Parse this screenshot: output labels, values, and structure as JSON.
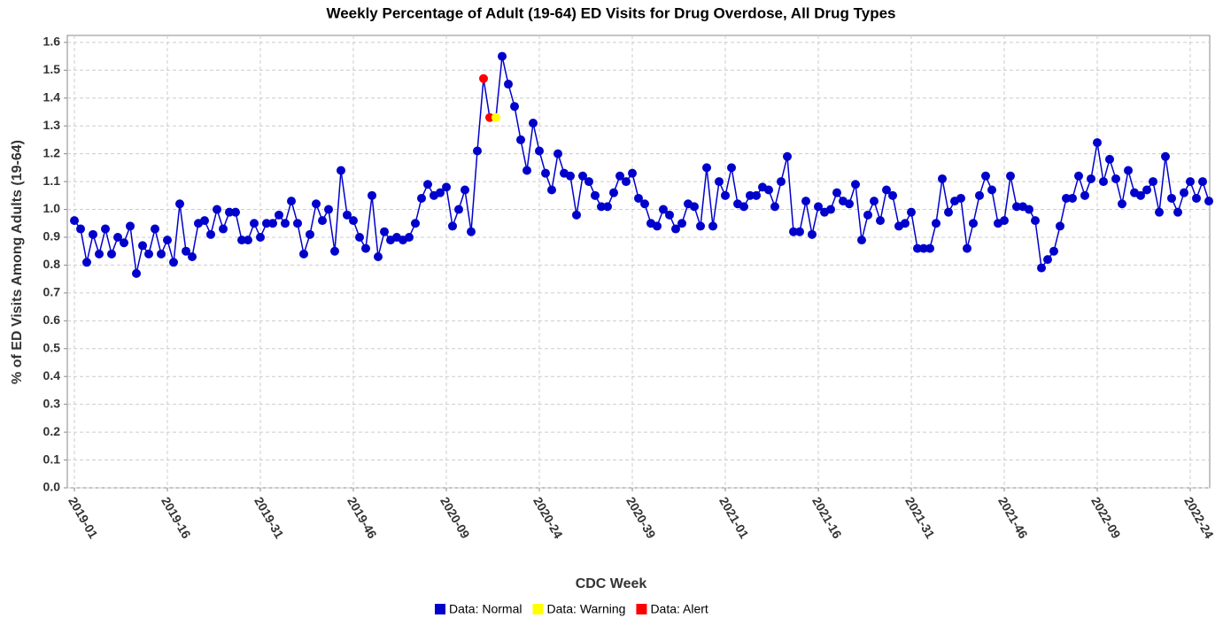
{
  "chart_data": {
    "type": "line",
    "title": "Weekly Percentage of Adult (19-64) ED Visits for Drug Overdose, All Drug Types",
    "x_label": "CDC Week",
    "y_label": "% of ED Visits Among Adults (19-64)",
    "categories": [
      "2019-01",
      null,
      null,
      null,
      null,
      null,
      null,
      null,
      null,
      null,
      null,
      null,
      null,
      null,
      null,
      "2019-16",
      null,
      null,
      null,
      null,
      null,
      null,
      null,
      null,
      null,
      null,
      null,
      null,
      null,
      null,
      "2019-31",
      null,
      null,
      null,
      null,
      null,
      null,
      null,
      null,
      null,
      null,
      null,
      null,
      null,
      null,
      "2019-46",
      null,
      null,
      null,
      null,
      null,
      null,
      null,
      null,
      null,
      null,
      null,
      null,
      null,
      null,
      "2020-09",
      null,
      null,
      null,
      null,
      null,
      null,
      null,
      null,
      null,
      null,
      null,
      null,
      null,
      null,
      "2020-24",
      null,
      null,
      null,
      null,
      null,
      null,
      null,
      null,
      null,
      null,
      null,
      null,
      null,
      null,
      "2020-39",
      null,
      null,
      null,
      null,
      null,
      null,
      null,
      null,
      null,
      null,
      null,
      null,
      null,
      null,
      "2021-01",
      null,
      null,
      null,
      null,
      null,
      null,
      null,
      null,
      null,
      null,
      null,
      null,
      null,
      null,
      "2021-16",
      null,
      null,
      null,
      null,
      null,
      null,
      null,
      null,
      null,
      null,
      null,
      null,
      null,
      null,
      "2021-31",
      null,
      null,
      null,
      null,
      null,
      null,
      null,
      null,
      null,
      null,
      null,
      null,
      null,
      null,
      "2021-46",
      null,
      null,
      null,
      null,
      null,
      null,
      null,
      null,
      null,
      null,
      null,
      null,
      null,
      null,
      "2022-09",
      null,
      null,
      null,
      null,
      null,
      null,
      null,
      null,
      null,
      null,
      null,
      null,
      null,
      null,
      "2022-24",
      null,
      null,
      null
    ],
    "series": [
      {
        "name": "Data: Normal",
        "color": "#0000cc",
        "values": [
          0.96,
          0.93,
          0.81,
          0.91,
          0.84,
          0.93,
          0.84,
          0.9,
          0.88,
          0.94,
          0.77,
          0.87,
          0.84,
          0.93,
          0.84,
          0.89,
          0.81,
          1.02,
          0.85,
          0.83,
          0.95,
          0.96,
          0.91,
          1.0,
          0.93,
          0.99,
          0.99,
          0.89,
          0.89,
          0.95,
          0.9,
          0.95,
          0.95,
          0.98,
          0.95,
          1.03,
          0.95,
          0.84,
          0.91,
          1.02,
          0.96,
          1.0,
          0.85,
          1.14,
          0.98,
          0.96,
          0.9,
          0.86,
          1.05,
          0.83,
          0.92,
          0.89,
          0.9,
          0.89,
          0.9,
          0.95,
          1.04,
          1.09,
          1.05,
          1.06,
          1.08,
          0.94,
          1.0,
          1.07,
          0.92,
          1.21,
          null,
          null,
          null,
          1.55,
          1.45,
          1.37,
          1.25,
          1.14,
          1.31,
          1.21,
          1.13,
          1.07,
          1.2,
          1.13,
          1.12,
          0.98,
          1.12,
          1.1,
          1.05,
          1.01,
          1.01,
          1.06,
          1.12,
          1.1,
          1.13,
          1.04,
          1.02,
          0.95,
          0.94,
          1.0,
          0.98,
          0.93,
          0.95,
          1.02,
          1.01,
          0.94,
          1.15,
          0.94,
          1.1,
          1.05,
          1.15,
          1.02,
          1.01,
          1.05,
          1.05,
          1.08,
          1.07,
          1.01,
          1.1,
          1.19,
          0.92,
          0.92,
          1.03,
          0.91,
          1.01,
          0.99,
          1.0,
          1.06,
          1.03,
          1.02,
          1.09,
          0.89,
          0.98,
          1.03,
          0.96,
          1.07,
          1.05,
          0.94,
          0.95,
          0.99,
          0.86,
          0.86,
          0.86,
          0.95,
          1.11,
          0.99,
          1.03,
          1.04,
          0.86,
          0.95,
          1.05,
          1.12,
          1.07,
          0.95,
          0.96,
          1.12,
          1.01,
          1.01,
          1.0,
          0.96,
          0.79,
          0.82,
          0.85,
          0.94,
          1.04,
          1.04,
          1.12,
          1.05,
          1.11,
          1.24,
          1.1,
          1.18,
          1.11,
          1.02,
          1.14,
          1.06,
          1.05,
          1.07,
          1.1,
          0.99,
          1.19,
          1.04,
          0.99,
          1.06,
          1.1,
          1.04,
          1.1,
          1.03
        ]
      },
      {
        "name": "Data: Warning",
        "color": "#ffff00",
        "values": [
          null,
          null,
          null,
          null,
          null,
          null,
          null,
          null,
          null,
          null,
          null,
          null,
          null,
          null,
          null,
          null,
          null,
          null,
          null,
          null,
          null,
          null,
          null,
          null,
          null,
          null,
          null,
          null,
          null,
          null,
          null,
          null,
          null,
          null,
          null,
          null,
          null,
          null,
          null,
          null,
          null,
          null,
          null,
          null,
          null,
          null,
          null,
          null,
          null,
          null,
          null,
          null,
          null,
          null,
          null,
          null,
          null,
          null,
          null,
          null,
          null,
          null,
          null,
          null,
          null,
          null,
          null,
          null,
          1.33,
          null,
          null,
          null,
          null,
          null,
          null,
          null,
          null,
          null,
          null,
          null,
          null,
          null,
          null,
          null,
          null,
          null,
          null,
          null,
          null,
          null,
          null,
          null,
          null,
          null,
          null,
          null,
          null,
          null,
          null,
          null,
          null,
          null,
          null,
          null,
          null,
          null,
          null,
          null,
          null,
          null,
          null,
          null,
          null,
          null,
          null,
          null,
          null,
          null,
          null,
          null,
          null,
          null,
          null,
          null,
          null,
          null,
          null,
          null,
          null,
          null,
          null,
          null,
          null,
          null,
          null,
          null,
          null,
          null,
          null,
          null,
          null,
          null,
          null,
          null,
          null,
          null,
          null,
          null,
          null,
          null,
          null,
          null,
          null,
          null,
          null,
          null,
          null,
          null,
          null,
          null,
          null,
          null,
          null,
          null,
          null,
          null,
          null,
          null,
          null,
          null,
          null,
          null,
          null,
          null,
          null,
          null,
          null,
          null,
          null,
          null,
          null,
          null,
          null,
          null
        ]
      },
      {
        "name": "Data: Alert",
        "color": "#ff0000",
        "values": [
          null,
          null,
          null,
          null,
          null,
          null,
          null,
          null,
          null,
          null,
          null,
          null,
          null,
          null,
          null,
          null,
          null,
          null,
          null,
          null,
          null,
          null,
          null,
          null,
          null,
          null,
          null,
          null,
          null,
          null,
          null,
          null,
          null,
          null,
          null,
          null,
          null,
          null,
          null,
          null,
          null,
          null,
          null,
          null,
          null,
          null,
          null,
          null,
          null,
          null,
          null,
          null,
          null,
          null,
          null,
          null,
          null,
          null,
          null,
          null,
          null,
          null,
          null,
          null,
          null,
          null,
          1.47,
          1.33,
          null,
          null,
          null,
          null,
          null,
          null,
          null,
          null,
          null,
          null,
          null,
          null,
          null,
          null,
          null,
          null,
          null,
          null,
          null,
          null,
          null,
          null,
          null,
          null,
          null,
          null,
          null,
          null,
          null,
          null,
          null,
          null,
          null,
          null,
          null,
          null,
          null,
          null,
          null,
          null,
          null,
          null,
          null,
          null,
          null,
          null,
          null,
          null,
          null,
          null,
          null,
          null,
          null,
          null,
          null,
          null,
          null,
          null,
          null,
          null,
          null,
          null,
          null,
          null,
          null,
          null,
          null,
          null,
          null,
          null,
          null,
          null,
          null,
          null,
          null,
          null,
          null,
          null,
          null,
          null,
          null,
          null,
          null,
          null,
          null,
          null,
          null,
          null,
          null,
          null,
          null,
          null,
          null,
          null,
          null,
          null,
          null,
          null,
          null,
          null,
          null,
          null,
          null,
          null,
          null,
          null,
          null,
          null,
          null,
          null,
          null,
          null,
          null,
          null,
          null,
          null
        ]
      }
    ],
    "line_color": "#0000cc",
    "ylim": [
      0,
      1.625
    ],
    "yticks": [
      {
        "value": 0,
        "label": "0.0"
      },
      0.1,
      0.2,
      0.3,
      0.4,
      0.5,
      0.6,
      0.7,
      0.8,
      0.9,
      {
        "value": 1,
        "label": "1.0"
      },
      1.1,
      1.2,
      1.3,
      1.4,
      1.5,
      1.6
    ],
    "grid": true,
    "legend_position": "bottom"
  }
}
